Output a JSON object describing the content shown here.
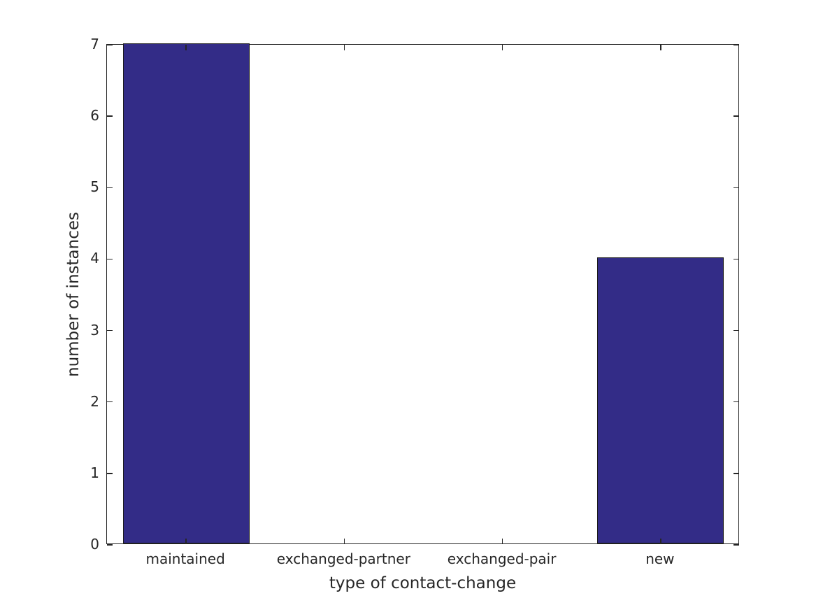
{
  "chart_data": {
    "type": "bar",
    "title": "",
    "categories": [
      "maintained",
      "exchanged-partner",
      "exchanged-pair",
      "new"
    ],
    "values": [
      7,
      0,
      0,
      4
    ],
    "xlabel": "type of contact-change",
    "ylabel": "number of instances",
    "ylim": [
      0,
      7
    ],
    "yticks": [
      0,
      1,
      2,
      3,
      4,
      5,
      6,
      7
    ],
    "bar_width_fraction": 0.8,
    "bar_color": "#332c87",
    "bar_edge_color": "#1a1a1a",
    "axis_color": "#262626",
    "text_color": "#262626",
    "background_color": "#ffffff",
    "grid": "off",
    "legend": "none",
    "box": "on",
    "tick_direction": "in"
  }
}
